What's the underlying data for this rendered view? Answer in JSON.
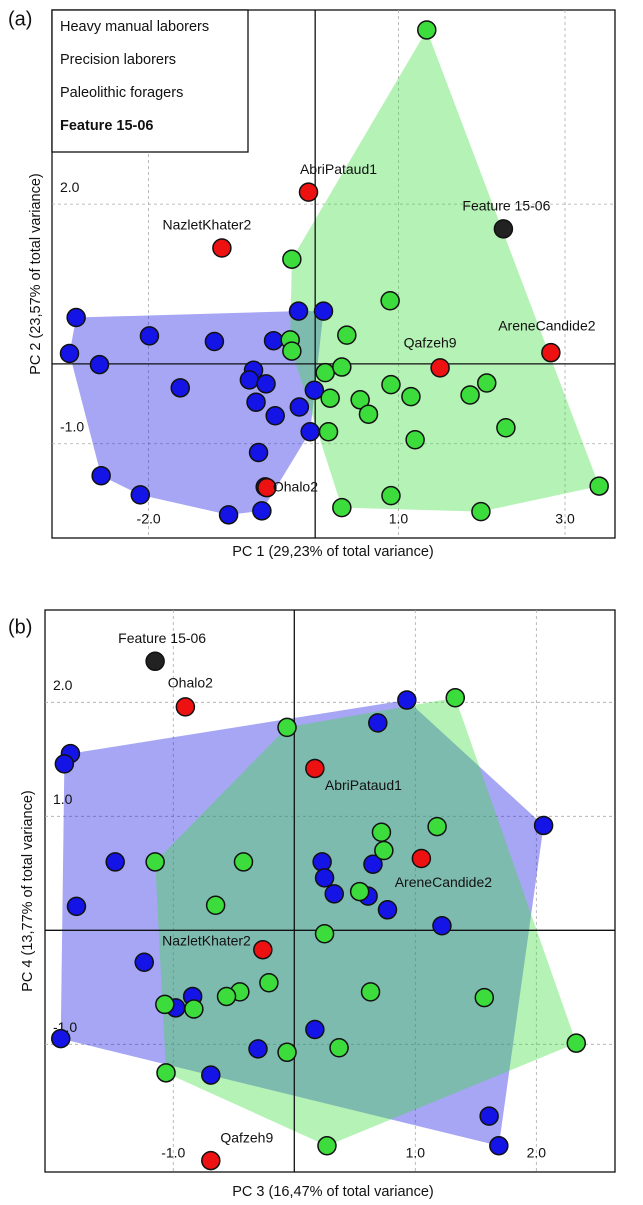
{
  "chart_data": [
    {
      "type": "scatter",
      "panel_label": "(a)",
      "xlabel": "PC 1 (29,23% of total variance)",
      "ylabel": "PC 2 (23,57% of total variance)",
      "xlim": [
        -3.16,
        3.6
      ],
      "ylim": [
        -2.18,
        4.43
      ],
      "xticks": [
        {
          "value": -2,
          "label": "-2.0"
        },
        {
          "value": 1,
          "label": "1.0"
        },
        {
          "value": 3,
          "label": "3.0"
        }
      ],
      "yticks": [
        {
          "value": 2,
          "label": "2.0"
        },
        {
          "value": -1,
          "label": "-1.0"
        }
      ],
      "grid": true,
      "hull": true,
      "legend": "upper left",
      "series": [
        {
          "name": "Heavy manual laborers",
          "color": "#1414e6",
          "x": [
            -2.87,
            -2.95,
            -2.59,
            -1.99,
            -1.21,
            -0.5,
            -0.2,
            0.1,
            -1.62,
            -0.74,
            -0.79,
            -0.59,
            -0.71,
            -0.48,
            -0.19,
            -0.01,
            -0.06,
            -0.68,
            -0.6,
            -0.64,
            -1.04,
            -2.1,
            -2.57
          ],
          "values": [
            0.58,
            0.13,
            -0.01,
            0.35,
            0.28,
            0.29,
            0.66,
            0.66,
            -0.3,
            -0.08,
            -0.2,
            -0.25,
            -0.48,
            -0.65,
            -0.54,
            -0.33,
            -0.85,
            -1.11,
            -1.54,
            -1.84,
            -1.89,
            -1.64,
            -1.4
          ]
        },
        {
          "name": "Precision laborers",
          "color": "#3ddc3d",
          "x": [
            1.34,
            -0.28,
            0.9,
            0.38,
            -0.3,
            -0.28,
            0.12,
            0.32,
            0.91,
            0.18,
            0.16,
            0.54,
            0.64,
            1.15,
            1.86,
            2.06,
            1.2,
            2.29,
            0.91,
            0.32,
            1.99,
            3.41
          ],
          "values": [
            4.18,
            1.31,
            0.79,
            0.36,
            0.3,
            0.16,
            -0.11,
            -0.04,
            -0.26,
            -0.43,
            -0.85,
            -0.45,
            -0.63,
            -0.41,
            -0.39,
            -0.24,
            -0.95,
            -0.8,
            -1.65,
            -1.8,
            -1.85,
            -1.53
          ]
        },
        {
          "name": "Paleolithic foragers",
          "color": "#ee1111",
          "x": [
            -0.08,
            -1.12,
            2.83,
            1.5,
            -0.58
          ],
          "values": [
            2.15,
            1.45,
            0.14,
            -0.05,
            -1.55
          ],
          "labels": [
            "AbriPataud1",
            "NazletKhater2",
            "AreneCandide2",
            "Qafzeh9",
            "Ohalo2"
          ]
        },
        {
          "name": "Feature 15-06",
          "color": "#222222",
          "x": [
            2.26
          ],
          "values": [
            1.69
          ],
          "labels": [
            "Feature 15-06"
          ]
        }
      ]
    },
    {
      "type": "scatter",
      "panel_label": "(b)",
      "xlabel": "PC 3 (16,47% of total variance)",
      "ylabel": "PC 4 (13,77% of total variance)",
      "xlim": [
        -2.06,
        2.65
      ],
      "ylim": [
        -2.12,
        2.81
      ],
      "xticks": [
        {
          "value": -1,
          "label": "-1.0"
        },
        {
          "value": 1,
          "label": "1.0"
        },
        {
          "value": 2,
          "label": "2.0"
        }
      ],
      "yticks": [
        {
          "value": 2,
          "label": "2.0"
        },
        {
          "value": 1,
          "label": "1.0"
        },
        {
          "value": -1,
          "label": "-1.0"
        }
      ],
      "grid": true,
      "hull": true,
      "series": [
        {
          "color": "#1414e6",
          "x": [
            -1.85,
            -1.9,
            -1.48,
            -1.8,
            -1.24,
            -0.84,
            -0.98,
            -1.93,
            -0.69,
            -0.3,
            0.93,
            0.69,
            0.23,
            0.25,
            0.65,
            0.61,
            0.33,
            0.77,
            1.22,
            2.06,
            0.17,
            1.61,
            1.69
          ],
          "values": [
            1.55,
            1.46,
            0.6,
            0.21,
            -0.28,
            -0.58,
            -0.68,
            -0.95,
            -1.27,
            -1.04,
            2.02,
            1.82,
            0.6,
            0.46,
            0.58,
            0.3,
            0.32,
            0.18,
            0.04,
            0.92,
            -0.87,
            -1.63,
            -1.89
          ]
        },
        {
          "color": "#3ddc3d",
          "x": [
            1.33,
            -0.06,
            0.72,
            1.18,
            0.74,
            -1.15,
            -0.42,
            -0.65,
            0.54,
            0.25,
            -0.45,
            -0.21,
            -0.56,
            -0.83,
            -1.07,
            0.63,
            1.57,
            0.37,
            -0.06,
            -1.06,
            0.27,
            2.33
          ],
          "values": [
            2.04,
            1.78,
            0.86,
            0.91,
            0.7,
            0.6,
            0.6,
            0.22,
            0.34,
            -0.03,
            -0.54,
            -0.46,
            -0.58,
            -0.69,
            -0.65,
            -0.54,
            -0.59,
            -1.03,
            -1.07,
            -1.25,
            -1.89,
            -0.99
          ]
        },
        {
          "color": "#ee1111",
          "x": [
            -0.9,
            0.17,
            1.05,
            -0.26,
            -0.69
          ],
          "values": [
            1.96,
            1.42,
            0.63,
            -0.17,
            -2.02
          ],
          "labels": [
            "Ohalo2",
            "AbriPataud1",
            "AreneCandide2",
            "NazletKhater2",
            "Qafzeh9"
          ]
        },
        {
          "color": "#222222",
          "x": [
            -1.15
          ],
          "values": [
            2.36
          ],
          "labels": [
            "Feature 15-06"
          ]
        }
      ]
    }
  ]
}
